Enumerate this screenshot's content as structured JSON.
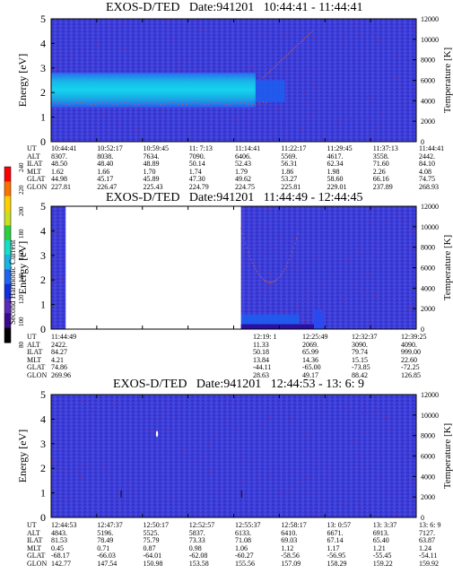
{
  "panels": [
    {
      "title": "EXOS-D/TED   Date:941201   10:44:41 - 11:44:41",
      "ylabel_left": "Energy [eV]",
      "ylabel_right": "Temperature [K]",
      "ephemeris": {
        "labels": [
          "UT",
          "ALT",
          "ILAT",
          "MLT",
          "GLAT",
          "GLON"
        ],
        "columns": [
          [
            "10:44:41",
            "8307.",
            "48.50",
            "1.62",
            "44.98",
            "227.81"
          ],
          [
            "10:52:17",
            "8038.",
            "48.40",
            "1.66",
            "45.17",
            "226.47"
          ],
          [
            "10:59:45",
            "7634.",
            "48.89",
            "1.70",
            "45.89",
            "225.43"
          ],
          [
            "11: 7:13",
            "7090.",
            "50.14",
            "1.74",
            "47.30",
            "224.79"
          ],
          [
            "11:14:41",
            "6406.",
            "52.43",
            "1.79",
            "49.62",
            "224.75"
          ],
          [
            "11:22:17",
            "5569.",
            "56.31",
            "1.86",
            "53.27",
            "225.81"
          ],
          [
            "11:29:45",
            "4617.",
            "62.34",
            "1.98",
            "58.60",
            "229.01"
          ],
          [
            "11:37:13",
            "3558.",
            "71.60",
            "2.26",
            "66.16",
            "237.89"
          ],
          [
            "11:44:41",
            "2442.",
            "84.10",
            "4.08",
            "74.75",
            "268.93"
          ]
        ]
      }
    },
    {
      "title": "EXOS-D/TED   Date:941201   11:44:49 - 12:44:45",
      "ylabel_left": "Energy [eV]",
      "ylabel_right": "Temperature [K]",
      "ephemeris": {
        "labels": [
          "UT",
          "ALT",
          "ILAT",
          "MLT",
          "GLAT",
          "GLON"
        ],
        "columns": [
          [
            "11:44:49",
            "2422.",
            "84.27",
            "4.21",
            "74.86",
            "269.96"
          ],
          [
            "12:19: 1",
            "11.33",
            "50.18",
            "13.84",
            "-44.11",
            "28.63"
          ],
          [
            "12:25:49",
            "2069.",
            "65.99",
            "14.36",
            "-65.00",
            "49.17"
          ],
          [
            "12:32:37",
            "3090.",
            "79.74",
            "15.15",
            "-73.85",
            "88.42"
          ],
          [
            "12:39:25",
            "4090.",
            "999.00",
            "22.60",
            "-72.25",
            "126.85"
          ]
        ]
      }
    },
    {
      "title": "EXOS-D/TED   Date:941201   12:44:53 - 13: 6: 9",
      "ylabel_left": "Energy [eV]",
      "ylabel_right": "Temperature [K]",
      "ephemeris": {
        "labels": [
          "UT",
          "ALT",
          "ILAT",
          "MLT",
          "GLAT",
          "GLON"
        ],
        "columns": [
          [
            "12:44:53",
            "4843.",
            "81.53",
            "0.45",
            "-68.17",
            "142.77"
          ],
          [
            "12:47:37",
            "5196.",
            "78.49",
            "0.71",
            "-66.03",
            "147.54"
          ],
          [
            "12:50:17",
            "5525.",
            "75.79",
            "0.87",
            "-64.01",
            "150.98"
          ],
          [
            "12:52:57",
            "5837.",
            "73.33",
            "0.98",
            "-62.08",
            "153.58"
          ],
          [
            "12:55:37",
            "6133.",
            "71.08",
            "1.06",
            "-60.27",
            "155.56"
          ],
          [
            "12:58:17",
            "6410.",
            "69.03",
            "1.12",
            "-58.56",
            "157.09"
          ],
          [
            "13: 0:57",
            "6671.",
            "67.14",
            "1.17",
            "-56.95",
            "158.29"
          ],
          [
            "13: 3:37",
            "6913.",
            "65.40",
            "1.21",
            "-55.45",
            "159.22"
          ],
          [
            "13: 6: 9",
            "7127.",
            "63.87",
            "1.24",
            "-54.11",
            "159.92"
          ]
        ]
      }
    }
  ],
  "colorbar": {
    "label": "Second Harmonic Current",
    "ticks": [
      "80",
      "100",
      "120",
      "140",
      "160",
      "180",
      "200",
      "220",
      "240"
    ]
  },
  "chart_data": [
    {
      "type": "heatmap",
      "title": "EXOS-D/TED   Date:941201   10:44:41 - 11:44:41",
      "ylabel": "Energy [eV]",
      "ylabel_right": "Temperature [K]",
      "ylim": [
        0,
        5
      ],
      "ylim_right": [
        0,
        12000
      ],
      "yticks": [
        "0",
        "1",
        "2",
        "3",
        "4",
        "5"
      ],
      "yticks_right": [
        "0",
        "2000",
        "4000",
        "6000",
        "8000",
        "10000",
        "12000"
      ],
      "x_ticks": [
        "10:44:41",
        "10:52:17",
        "10:59:45",
        "11: 7:13",
        "11:14:41",
        "11:22:17",
        "11:29:45",
        "11:37:13",
        "11:44:41"
      ],
      "features": [
        {
          "kind": "band",
          "energy_low": 1.4,
          "energy_high": 2.8,
          "x_start": 0.0,
          "x_end": 0.56,
          "level": 160
        },
        {
          "kind": "band",
          "energy_low": 1.6,
          "energy_high": 2.5,
          "x_start": 0.56,
          "x_end": 0.64,
          "level": 130
        }
      ]
    },
    {
      "type": "heatmap",
      "title": "EXOS-D/TED   Date:941201   11:44:49 - 12:44:45",
      "ylabel": "Energy [eV]",
      "ylabel_right": "Temperature [K]",
      "ylim": [
        0,
        5
      ],
      "ylim_right": [
        0,
        12000
      ],
      "yticks": [
        "0",
        "1",
        "2",
        "3",
        "4",
        "5"
      ],
      "yticks_right": [
        "0",
        "2000",
        "4000",
        "6000",
        "8000",
        "10000",
        "12000"
      ],
      "x_ticks": [
        "11:44:49",
        "12:19: 1",
        "12:25:49",
        "12:32:37",
        "12:39:25"
      ],
      "data_gap": [
        0.04,
        0.52
      ],
      "features": [
        {
          "kind": "band",
          "energy_low": 0.0,
          "energy_high": 0.6,
          "x_start": 0.52,
          "x_end": 0.68,
          "level": 110
        }
      ]
    },
    {
      "type": "heatmap",
      "title": "EXOS-D/TED   Date:941201   12:44:53 - 13: 6: 9",
      "ylabel": "Energy [eV]",
      "ylabel_right": "Temperature [K]",
      "ylim": [
        0,
        5
      ],
      "ylim_right": [
        0,
        12000
      ],
      "yticks": [
        "0",
        "1",
        "2",
        "3",
        "4",
        "5"
      ],
      "yticks_right": [
        "0",
        "2000",
        "4000",
        "6000",
        "8000",
        "10000",
        "12000"
      ],
      "x_ticks": [
        "12:44:53",
        "12:47:37",
        "12:50:17",
        "12:52:57",
        "12:55:37",
        "12:58:17",
        "13: 0:57",
        "13: 3:37",
        "13: 6: 9"
      ],
      "features": []
    }
  ]
}
